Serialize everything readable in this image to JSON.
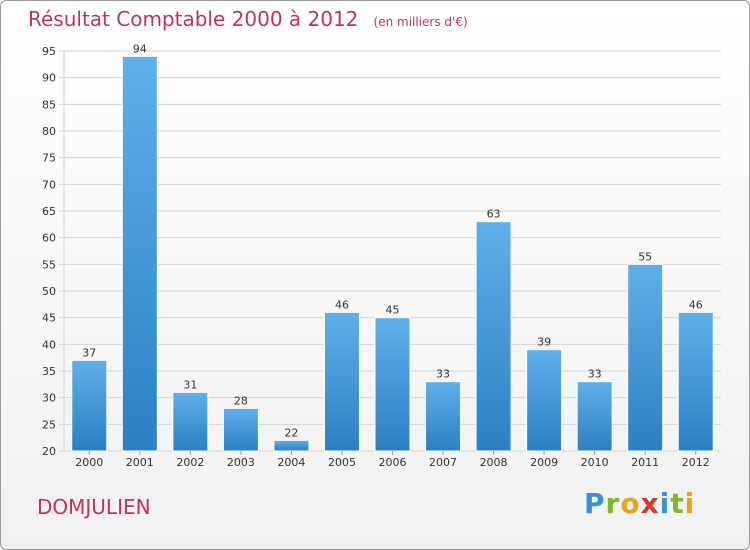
{
  "title": "Résultat Comptable 2000 à 2012",
  "subtitle": "(en milliers d'€)",
  "place_name": "DOMJULIEN",
  "logo": {
    "text": "Proxiti",
    "letters": [
      {
        "char": "P",
        "color": "#3a8fd6"
      },
      {
        "char": "r",
        "color": "#7cb82f"
      },
      {
        "char": "o",
        "color": "#e8a31c"
      },
      {
        "char": "x",
        "color": "#d6382b"
      },
      {
        "char": "i",
        "color": "#3a8fd6"
      },
      {
        "char": "t",
        "color": "#7cb82f"
      },
      {
        "char": "i",
        "color": "#e8a31c"
      }
    ]
  },
  "colors": {
    "title": "#c0345a",
    "bar_light": "#5fb0ea",
    "bar_dark": "#2c7fc2",
    "grid": "#d4d4d4",
    "axis_text": "#333333"
  },
  "chart_data": {
    "type": "bar",
    "categories": [
      "2000",
      "2001",
      "2002",
      "2003",
      "2004",
      "2005",
      "2006",
      "2007",
      "2008",
      "2009",
      "2010",
      "2011",
      "2012"
    ],
    "values": [
      37,
      94,
      31,
      28,
      22,
      46,
      45,
      33,
      63,
      39,
      33,
      55,
      46
    ],
    "ylim": [
      20,
      95
    ],
    "yticks": [
      20,
      25,
      30,
      35,
      40,
      45,
      50,
      55,
      60,
      65,
      70,
      75,
      80,
      85,
      90,
      95
    ],
    "grid": true,
    "legend": "none",
    "data_labels": true
  }
}
